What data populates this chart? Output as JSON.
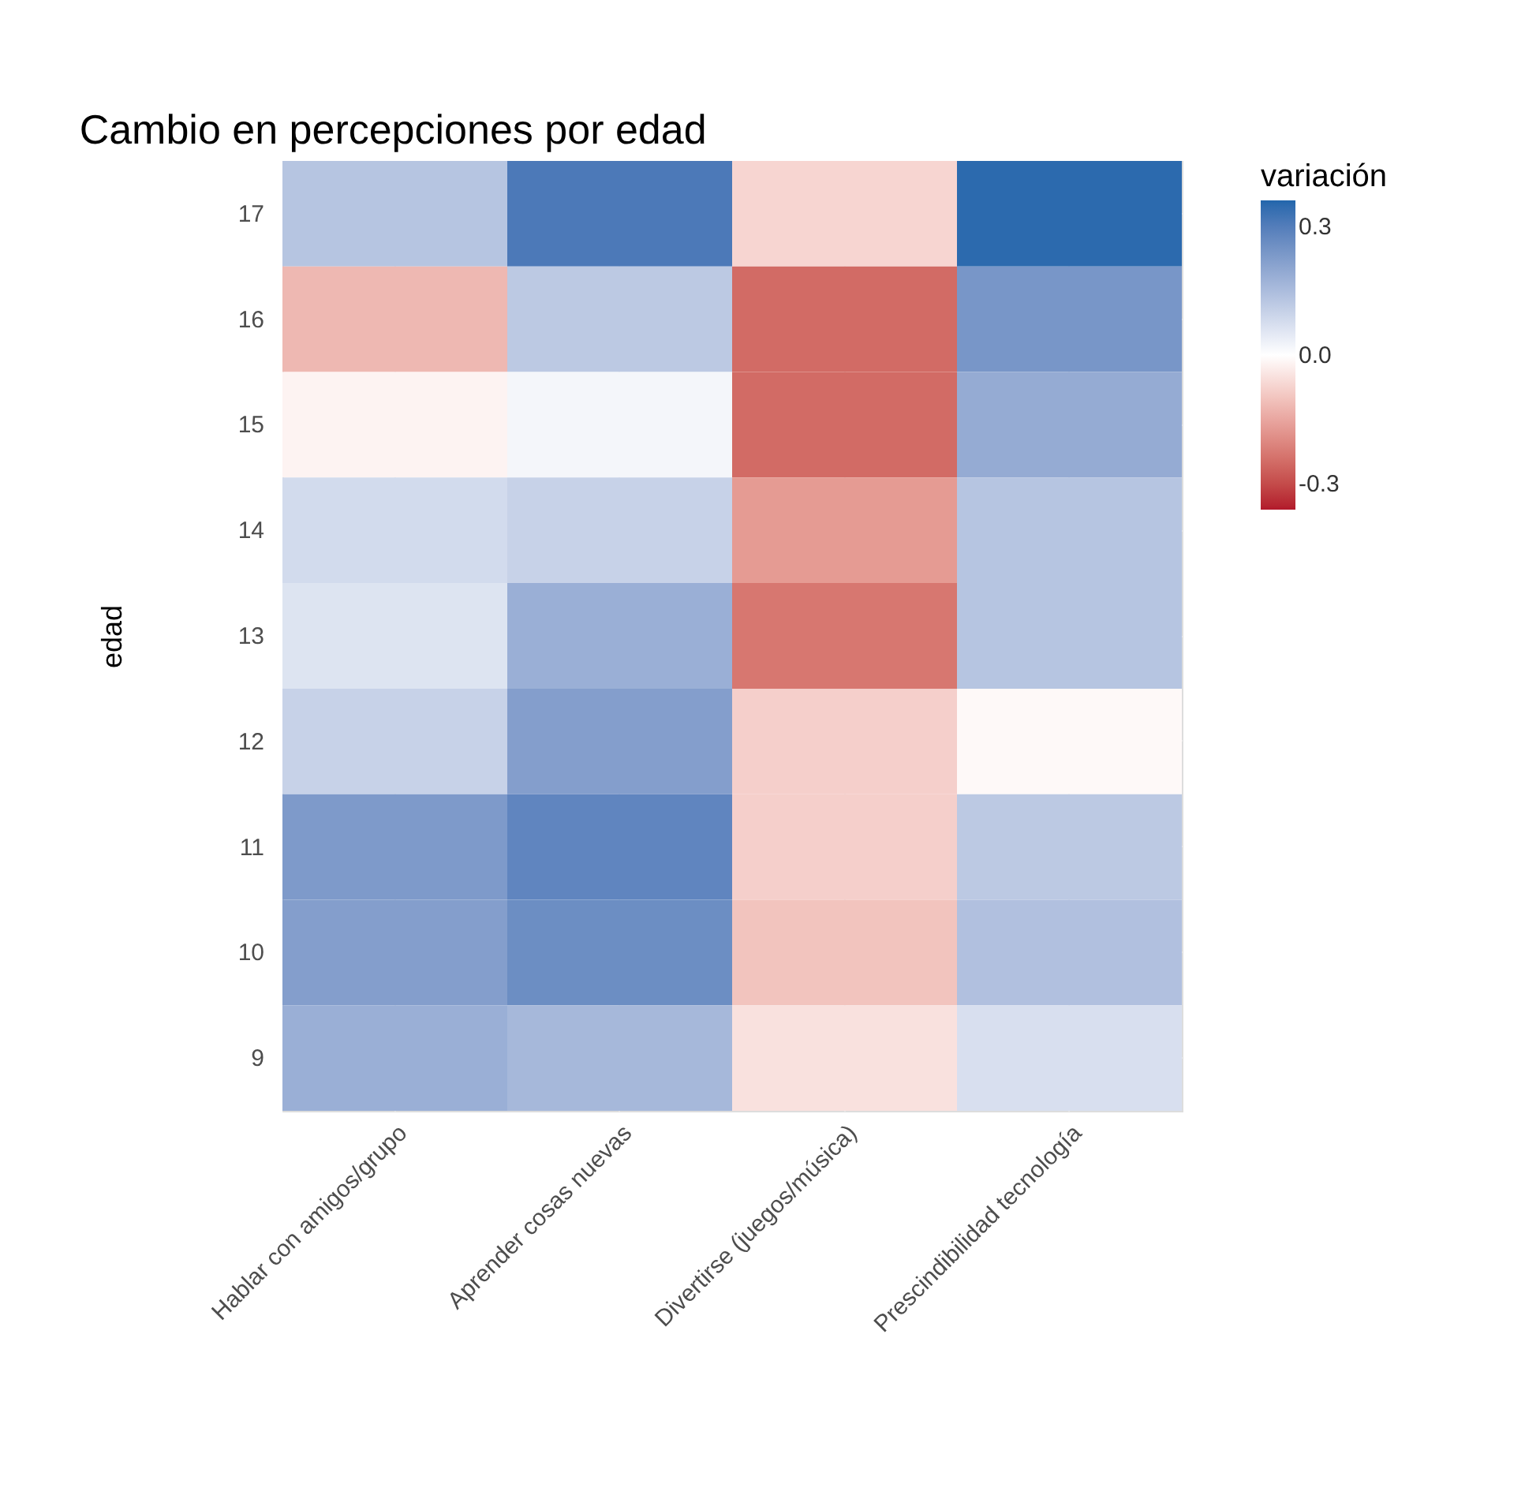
{
  "chart_data": {
    "type": "heatmap",
    "title": "Cambio en percepciones por edad",
    "ylabel": "edad",
    "clabel": "variación",
    "categories": [
      "Hablar con amigos/grupo",
      "Aprender cosas nuevas",
      "Divertirse (juegos/música)",
      "Prescindibilidad tecnología"
    ],
    "y_categories": [
      "17",
      "16",
      "15",
      "14",
      "13",
      "12",
      "11",
      "10",
      "9"
    ],
    "cells": [
      [
        0.13,
        0.31,
        -0.07,
        0.35
      ],
      [
        -0.12,
        0.12,
        -0.25,
        0.24
      ],
      [
        -0.02,
        0.02,
        -0.25,
        0.19
      ],
      [
        0.08,
        0.1,
        -0.17,
        0.13
      ],
      [
        0.06,
        0.18,
        -0.23,
        0.13
      ],
      [
        0.1,
        0.22,
        -0.08,
        -0.01
      ],
      [
        0.23,
        0.28,
        -0.08,
        0.12
      ],
      [
        0.22,
        0.26,
        -0.1,
        0.14
      ],
      [
        0.18,
        0.16,
        -0.05,
        0.07
      ]
    ],
    "clim": [
      -0.36,
      0.36
    ],
    "cticks": [
      0.3,
      {
        "value": 0,
        "label": "0.0"
      },
      -0.3
    ],
    "grid": true
  }
}
